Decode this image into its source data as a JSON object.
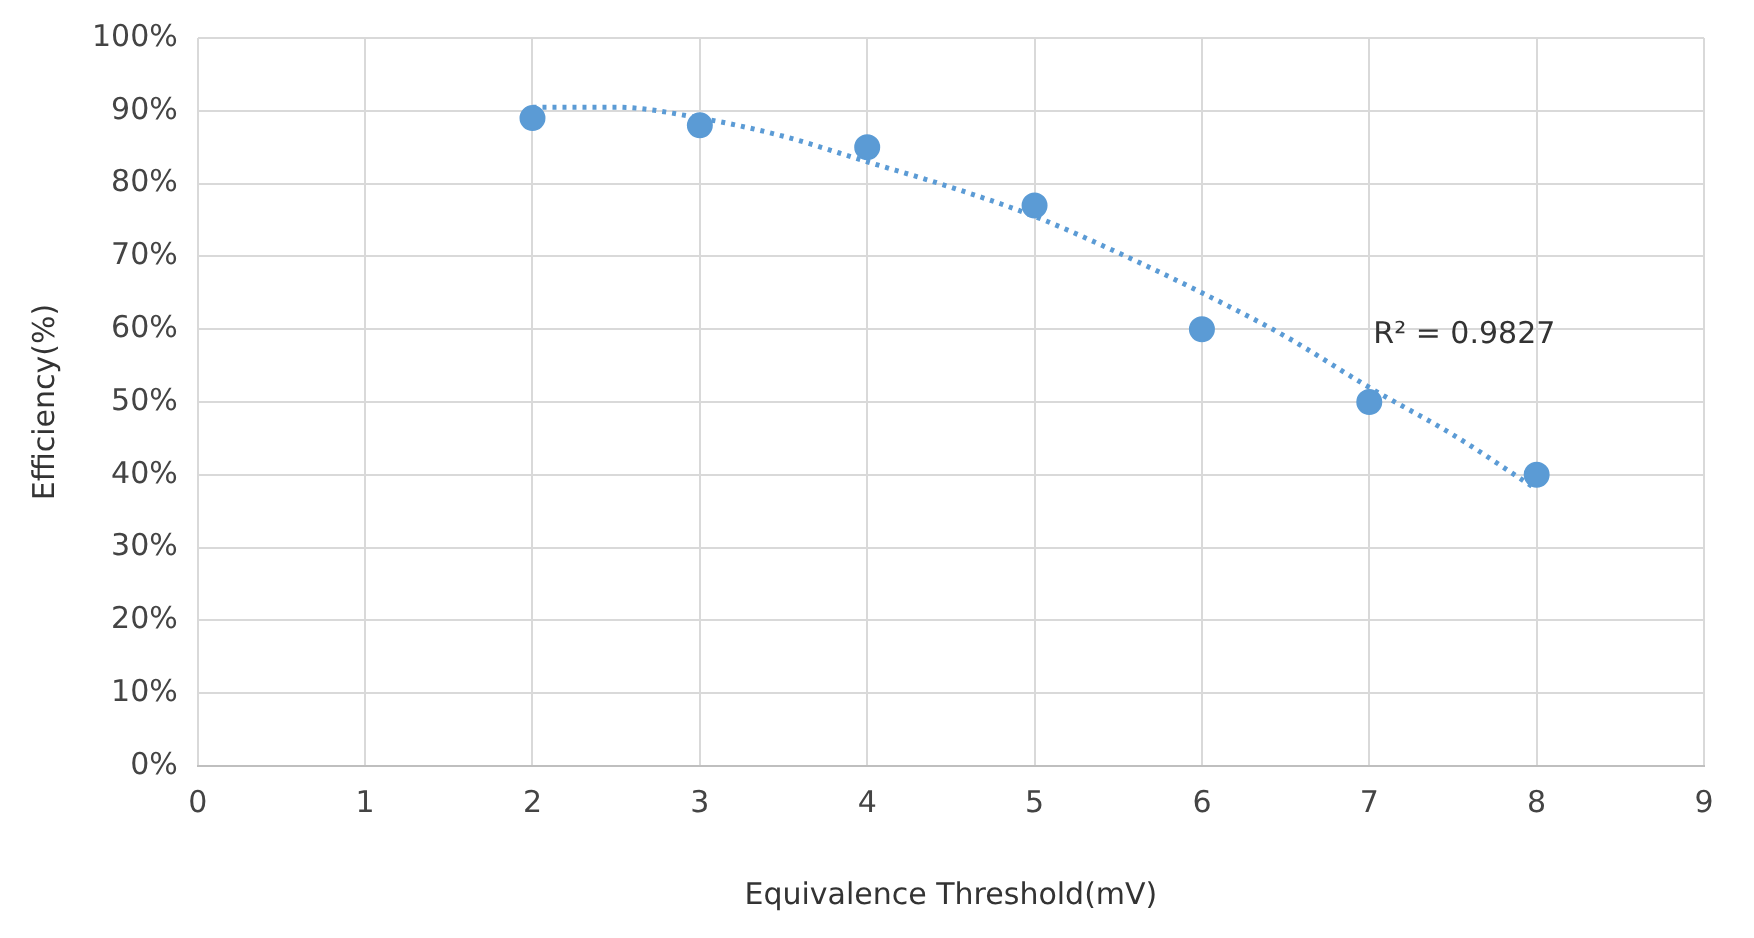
{
  "chart_data": {
    "type": "scatter",
    "xlabel": "Equivalence Threshold(mV)",
    "ylabel": "Efficiency(%)",
    "xlim": [
      0,
      9
    ],
    "xticks": [
      0,
      1,
      2,
      3,
      4,
      5,
      6,
      7,
      8,
      9
    ],
    "ylim": [
      0,
      100
    ],
    "yticks": [
      {
        "value": 0,
        "label": "0%"
      },
      {
        "value": 10,
        "label": "10%"
      },
      {
        "value": 20,
        "label": "20%"
      },
      {
        "value": 30,
        "label": "30%"
      },
      {
        "value": 40,
        "label": "40%"
      },
      {
        "value": 50,
        "label": "50%"
      },
      {
        "value": 60,
        "label": "60%"
      },
      {
        "value": 70,
        "label": "70%"
      },
      {
        "value": 80,
        "label": "80%"
      },
      {
        "value": 90,
        "label": "90%"
      },
      {
        "value": 100,
        "label": "100%"
      }
    ],
    "grid": true,
    "legend": false,
    "marker": "circle",
    "series": [
      {
        "color": "#5b9bd5",
        "x": [
          2,
          3,
          4,
          5,
          6,
          7,
          8
        ],
        "values": [
          89,
          88,
          85,
          77,
          60,
          50,
          40
        ]
      },
      {
        "type": "line",
        "color": "#5b9bd5",
        "line_style": "dotted",
        "marker": "none",
        "x": [
          2,
          2.5,
          3,
          3.5,
          4,
          4.5,
          5,
          5.5,
          6,
          6.5,
          7,
          7.5,
          8
        ],
        "values": [
          90.5,
          90.5,
          89,
          86.5,
          83,
          79.5,
          75.5,
          70.5,
          65,
          59,
          52,
          45.5,
          38
        ]
      }
    ],
    "annotations": [
      "R² = 0.9827"
    ]
  }
}
